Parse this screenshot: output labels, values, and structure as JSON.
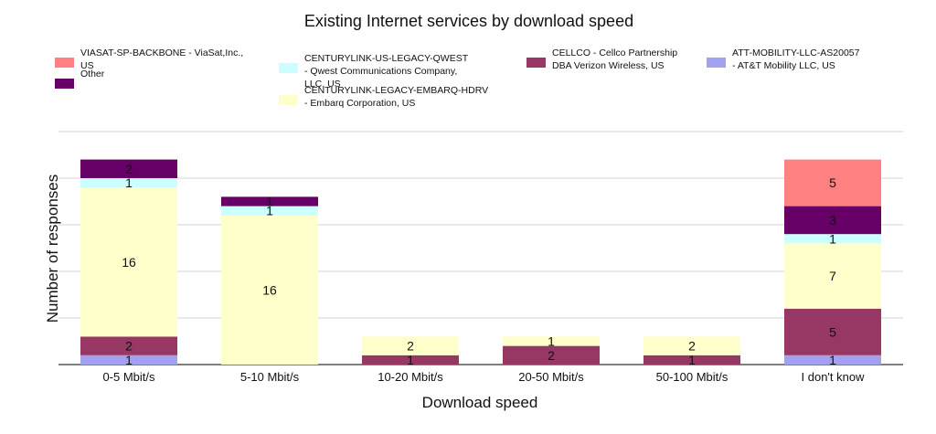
{
  "chart_data": {
    "type": "bar",
    "stacked": true,
    "title": "Existing Internet services by download speed",
    "xlabel": "Download speed",
    "ylabel": "Number of responses",
    "categories": [
      "0-5 Mbit/s",
      "5-10 Mbit/s",
      "10-20 Mbit/s",
      "20-50 Mbit/s",
      "50-100 Mbit/s",
      "I don't know"
    ],
    "ylim": [
      0,
      25
    ],
    "grid": true,
    "legend_position": "top",
    "series": [
      {
        "name": "ATT-MOBILITY-LLC-AS20057 - AT&T Mobility LLC, US",
        "color": "#a1a1ee",
        "values": [
          1,
          0,
          0,
          0,
          0,
          1
        ]
      },
      {
        "name": "CELLCO - Cellco Partnership DBA Verizon Wireless, US",
        "color": "#973763",
        "values": [
          2,
          0,
          1,
          2,
          1,
          5
        ]
      },
      {
        "name": "CENTURYLINK-LEGACY-EMBARQ-HDRV - Embarq Corporation, US",
        "color": "#ffffcc",
        "values": [
          16,
          16,
          2,
          1,
          2,
          7
        ]
      },
      {
        "name": "CENTURYLINK-US-LEGACY-QWEST - Qwest Communications Company, LLC, US",
        "color": "#ccffff",
        "values": [
          1,
          1,
          0,
          0,
          0,
          1
        ]
      },
      {
        "name": "Other",
        "color": "#660066",
        "values": [
          2,
          1,
          0,
          0,
          0,
          3
        ]
      },
      {
        "name": "VIASAT-SP-BACKBONE - ViaSat,Inc., US",
        "color": "#ff8080",
        "values": [
          0,
          0,
          0,
          0,
          0,
          5
        ]
      }
    ],
    "legend": [
      {
        "lines": [
          "VIASAT-SP-BACKBONE - ViaSat,Inc.,",
          "US"
        ],
        "color": "#ff8080"
      },
      {
        "lines": [
          "Other"
        ],
        "color": "#660066"
      },
      {
        "lines": [
          "CENTURYLINK-US-LEGACY-QWEST",
          "- Qwest Communications Company,",
          "LLC, US"
        ],
        "color": "#ccffff"
      },
      {
        "lines": [
          "CENTURYLINK-LEGACY-EMBARQ-HDRV",
          "- Embarq Corporation, US"
        ],
        "color": "#ffffcc"
      },
      {
        "lines": [
          "CELLCO - Cellco Partnership",
          "DBA Verizon Wireless, US"
        ],
        "color": "#973763"
      },
      {
        "lines": [
          "ATT-MOBILITY-LLC-AS20057",
          "- AT&T Mobility LLC, US"
        ],
        "color": "#a1a1ee"
      }
    ]
  }
}
